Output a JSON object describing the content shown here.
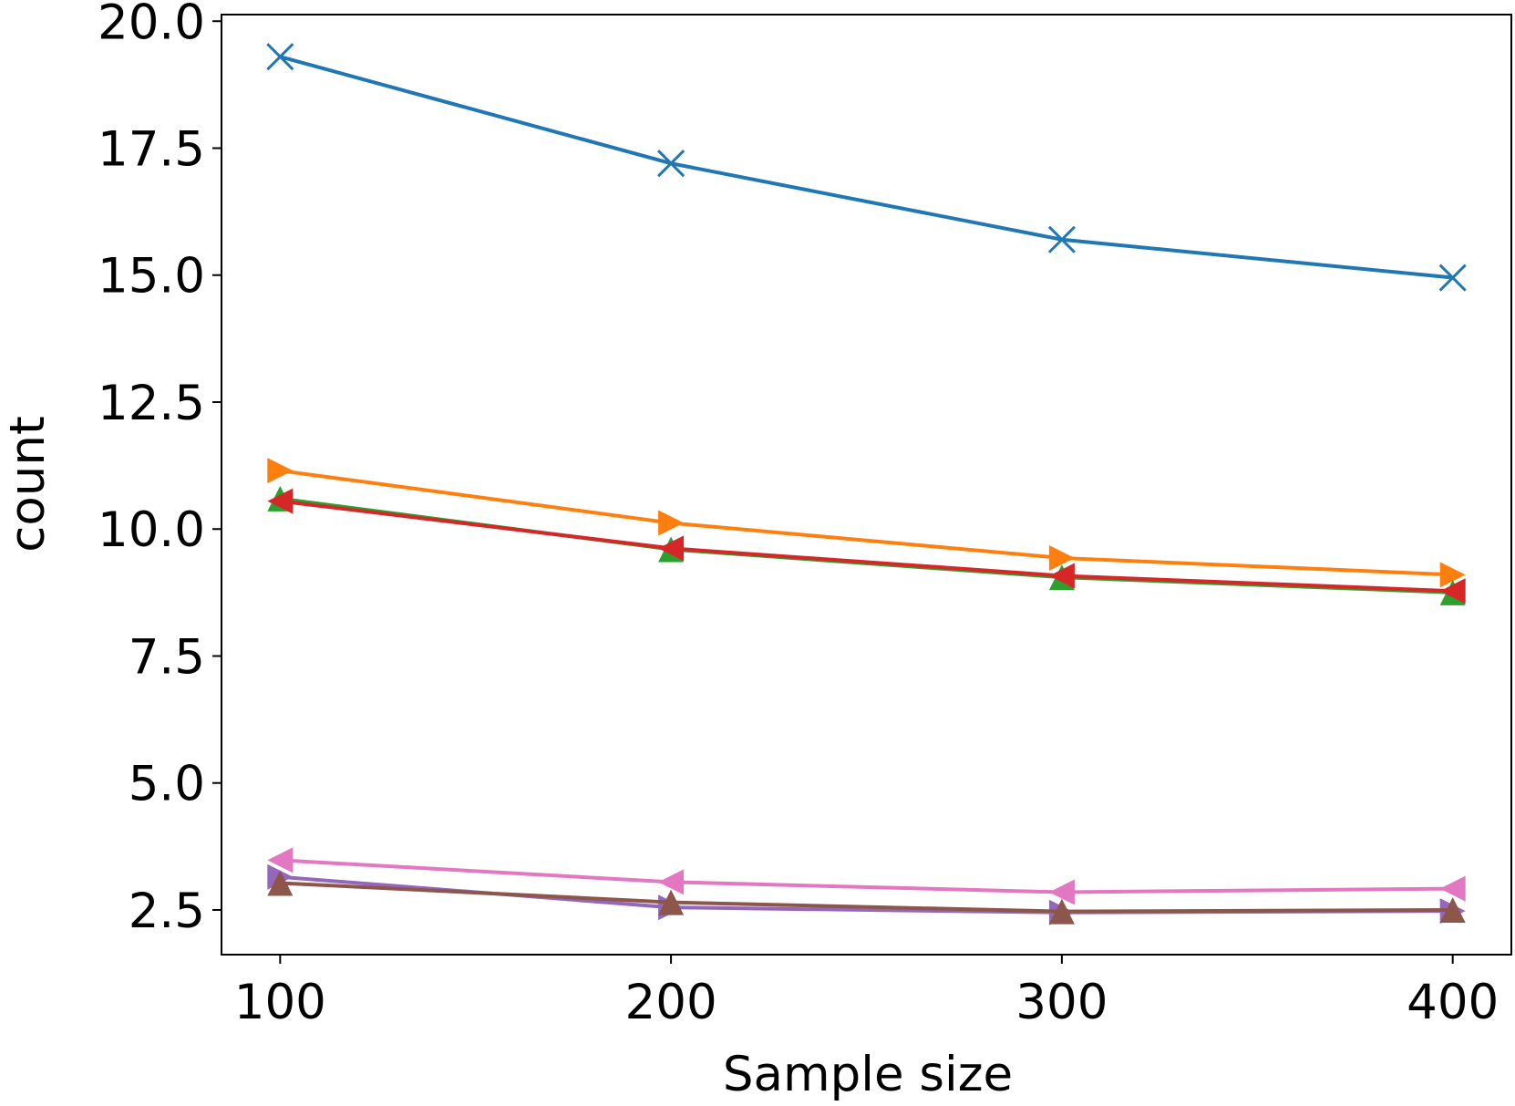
{
  "chart_data": {
    "type": "line",
    "x_label": "Sample size",
    "y_label": "count",
    "x": [
      100,
      200,
      300,
      400
    ],
    "xlim": [
      85,
      415
    ],
    "xticks": [
      100,
      200,
      300,
      400
    ],
    "ylim": [
      1.62,
      20.13
    ],
    "yticks": [
      {
        "value": 2.5,
        "label": "2.5"
      },
      {
        "value": 5,
        "label": "5.0"
      },
      {
        "value": 7.5,
        "label": "7.5"
      },
      {
        "value": 10,
        "label": "10.0"
      },
      {
        "value": 12.5,
        "label": "12.5"
      },
      {
        "value": 15,
        "label": "15.0"
      },
      {
        "value": 17.5,
        "label": "17.5"
      },
      {
        "value": 20,
        "label": "20.0"
      }
    ],
    "grid": false,
    "series": [
      {
        "color": "#1f77b4",
        "marker": "x",
        "values": [
          19.3,
          17.2,
          15.7,
          14.95
        ]
      },
      {
        "color": "#ff7f0e",
        "marker": "triangle-right",
        "values": [
          11.15,
          10.12,
          9.43,
          9.1
        ]
      },
      {
        "color": "#2ca02c",
        "marker": "triangle-up",
        "values": [
          10.6,
          9.6,
          9.05,
          8.75
        ]
      },
      {
        "color": "#d62728",
        "marker": "triangle-left",
        "values": [
          10.55,
          9.62,
          9.08,
          8.78
        ]
      },
      {
        "color": "#9467bd",
        "marker": "triangle-right",
        "values": [
          3.15,
          2.55,
          2.45,
          2.48
        ]
      },
      {
        "color": "#8c564b",
        "marker": "triangle-up",
        "values": [
          3.03,
          2.65,
          2.47,
          2.5
        ]
      },
      {
        "color": "#e377c2",
        "marker": "triangle-left",
        "values": [
          3.48,
          3.05,
          2.85,
          2.92
        ]
      }
    ]
  }
}
